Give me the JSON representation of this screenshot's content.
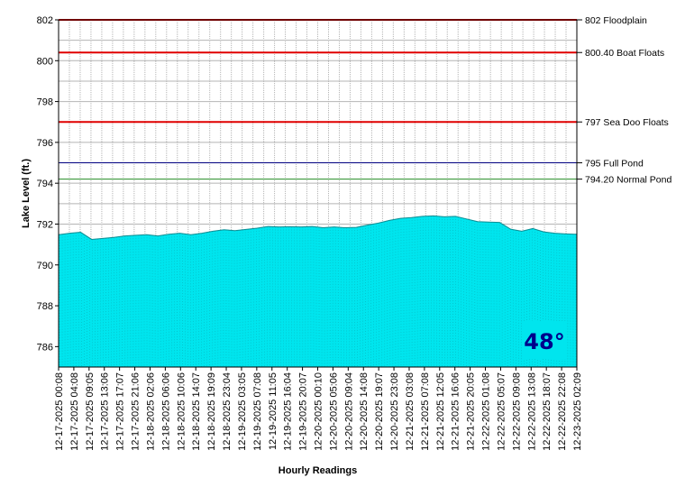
{
  "chart_data": {
    "type": "area",
    "xlabel": "Hourly Readings",
    "ylabel": "Lake Level (ft.)",
    "ylim": [
      785,
      802
    ],
    "yticks": [
      786,
      788,
      790,
      792,
      794,
      796,
      798,
      800,
      802
    ],
    "grid": true,
    "fill_color": "#00e5ee",
    "x_tick_labels": [
      "12-17-2025 00:08",
      "12-17-2025 04:08",
      "12-17-2025 09:05",
      "12-17-2025 13:06",
      "12-17-2025 17:07",
      "12-17-2025 21:06",
      "12-18-2025 02:06",
      "12-18-2025 06:06",
      "12-18-2025 10:06",
      "12-18-2025 14:07",
      "12-18-2025 19:09",
      "12-18-2025 23:04",
      "12-19-2025 03:05",
      "12-19-2025 07:08",
      "12-19-2025 11:05",
      "12-19-2025 16:04",
      "12-19-2025 20:07",
      "12-20-2025 00:10",
      "12-20-2025 05:06",
      "12-20-2025 09:04",
      "12-20-2025 14:08",
      "12-20-2025 19:07",
      "12-20-2025 23:08",
      "12-21-2025 03:08",
      "12-21-2025 07:08",
      "12-21-2025 12:05",
      "12-21-2025 16:06",
      "12-21-2025 20:05",
      "12-22-2025 01:08",
      "12-22-2025 05:07",
      "12-22-2025 09:08",
      "12-22-2025 13:08",
      "12-22-2025 18:07",
      "12-22-2025 22:08",
      "12-23-2025 02:09"
    ],
    "series": [
      {
        "values": [
          791.48,
          791.55,
          791.6,
          791.25,
          791.3,
          791.35,
          791.42,
          791.45,
          791.48,
          791.42,
          791.5,
          791.55,
          791.48,
          791.55,
          791.65,
          791.72,
          791.68,
          791.74,
          791.8,
          791.88,
          791.86,
          791.87,
          791.86,
          791.88,
          791.82,
          791.86,
          791.82,
          791.84,
          791.95,
          792.05,
          792.18,
          792.28,
          792.32,
          792.38,
          792.4,
          792.36,
          792.38,
          792.25,
          792.12,
          792.1,
          792.08,
          791.75,
          791.65,
          791.78,
          791.62,
          791.55,
          791.52,
          791.5
        ]
      }
    ],
    "reference_lines": [
      {
        "value": 802,
        "label": "802 Floodplain",
        "color": "#e00000"
      },
      {
        "value": 800.4,
        "label": "800.40 Boat Floats",
        "color": "#e00000"
      },
      {
        "value": 797,
        "label": "797 Sea Doo Floats",
        "color": "#e00000"
      },
      {
        "value": 795,
        "label": "795 Full Pond",
        "color": "#000080"
      },
      {
        "value": 794.2,
        "label": "794.20 Normal Pond",
        "color": "#228b22"
      }
    ]
  },
  "badge": {
    "text": "48°",
    "bg_color": "#00e5ee",
    "text_color": "#00008b"
  }
}
